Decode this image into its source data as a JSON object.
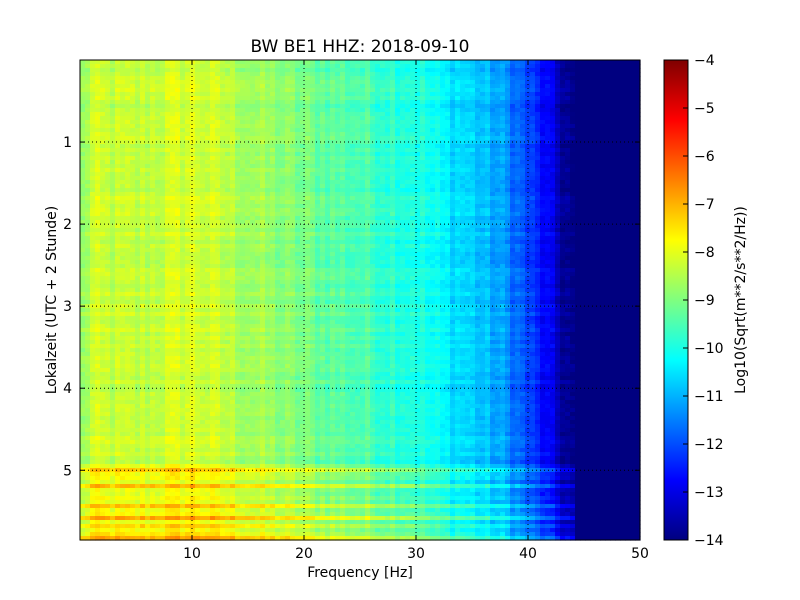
{
  "chart_data": {
    "type": "heatmap",
    "title": "BW BE1 HHZ: 2018-09-10",
    "xlabel": "Frequency [Hz]",
    "ylabel": "Lokalzeit (UTC + 2 Stunde)",
    "xlim": [
      0,
      50
    ],
    "ylim": [
      0,
      5.85
    ],
    "y_inverted": true,
    "x_ticks": [
      "10",
      "20",
      "30",
      "40",
      "50"
    ],
    "y_ticks": [
      "1",
      "2",
      "3",
      "4",
      "5"
    ],
    "grid": true,
    "colorbar": {
      "label": "Log10(Sqrt(m**2/s**2/Hz))",
      "min": -14,
      "max": -4,
      "ticks": [
        "−4",
        "−5",
        "−6",
        "−7",
        "−8",
        "−9",
        "−10",
        "−11",
        "−12",
        "−13",
        "−14"
      ],
      "colormap": "jet"
    },
    "spectrum_profile": {
      "frequency": [
        0,
        1,
        5,
        10,
        15,
        20,
        25,
        30,
        32,
        35,
        38,
        40,
        42,
        43,
        44,
        50
      ],
      "log_amplitude": [
        -9.0,
        -8.3,
        -8.4,
        -8.1,
        -8.6,
        -9.1,
        -9.5,
        -9.9,
        -10.3,
        -10.7,
        -11.3,
        -12.1,
        -13.0,
        -13.6,
        -14.0,
        -14.0
      ]
    },
    "noisy_interval_hours": [
      4.9,
      5.85
    ]
  }
}
